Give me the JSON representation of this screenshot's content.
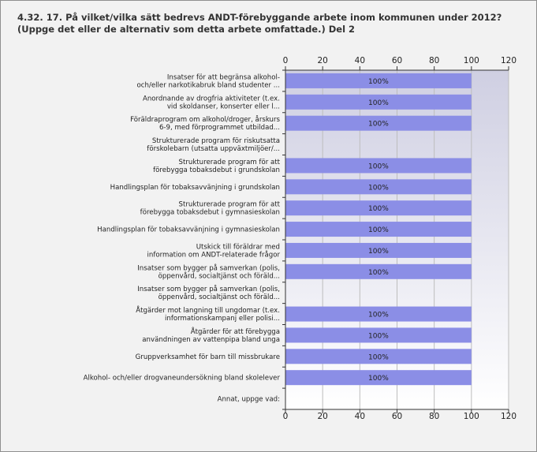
{
  "chart_data": {
    "type": "bar",
    "orientation": "horizontal",
    "title": "4.32. 17. På vilket/vilka sätt bedrevs ANDT-förebyggande arbete inom kommunen under 2012? (Uppge det eller de alternativ som detta arbete omfattade.) Del 2",
    "categories": [
      [
        "Insatser för att begränsa alkohol-",
        "och/eller narkotikabruk bland studenter ..."
      ],
      [
        "Anordnande av drogfria aktiviteter (t.ex.",
        "vid skoldanser, konserter eller l..."
      ],
      [
        "Föräldraprogram om alkohol/droger, årskurs",
        "6-9, med förprogrammet utbildad..."
      ],
      [
        "Strukturerade program för riskutsatta",
        "förskolebarn (utsatta uppväxtmiljöer/..."
      ],
      [
        "Strukturerade program för att",
        "förebygga tobaksdebut i grundskolan"
      ],
      [
        "Handlingsplan för tobaksavvänjning i grundskolan"
      ],
      [
        "Strukturerade program för att",
        "förebygga tobaksdebut i gymnasieskolan"
      ],
      [
        "Handlingsplan för tobaksavvänjning i gymnasieskolan"
      ],
      [
        "Utskick till föräldrar med",
        "information om ANDT-relaterade frågor"
      ],
      [
        "Insatser som bygger på samverkan (polis,",
        "öppenvård, socialtjänst och föräld..."
      ],
      [
        "Insatser som bygger på samverkan (polis,",
        "öppenvård, socialtjänst och föräld..."
      ],
      [
        "Åtgärder mot langning till ungdomar (t.ex.",
        "informationskampanj eller polisi..."
      ],
      [
        "Åtgärder för att förebygga",
        "användningen av vattenpipa bland unga"
      ],
      [
        "Gruppverksamhet för barn till missbrukare"
      ],
      [
        "Alkohol- och/eller drogvaneundersökning bland skolelever"
      ],
      [
        "Annat, uppge vad:"
      ]
    ],
    "values": [
      100,
      100,
      100,
      0,
      100,
      100,
      100,
      100,
      100,
      100,
      0,
      100,
      100,
      100,
      100,
      0
    ],
    "data_labels": [
      "100%",
      "100%",
      "100%",
      "",
      "100%",
      "100%",
      "100%",
      "100%",
      "100%",
      "100%",
      "",
      "100%",
      "100%",
      "100%",
      "100%",
      ""
    ],
    "xlim": [
      0,
      120
    ],
    "xticks": [
      "0",
      "20",
      "40",
      "60",
      "80",
      "100",
      "120"
    ],
    "grid": true,
    "bar_color": "#8b8ee6",
    "plot_gradient": [
      "#cfcfe2",
      "#ffffff"
    ]
  }
}
